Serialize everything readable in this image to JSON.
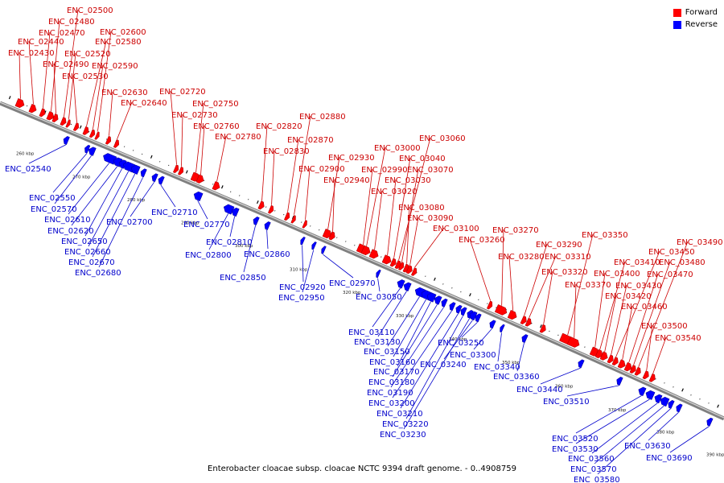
{
  "legend": {
    "forward": {
      "label": "Forward",
      "color": "#ff0000"
    },
    "reverse": {
      "label": "Reverse",
      "color": "#0000ff"
    }
  },
  "caption": "Enterobacter cloacae subsp. cloacae NCTC 9394 draft genome. - 0..4908759",
  "colors": {
    "backbone": "#808080",
    "forward_label": "#cc0000",
    "reverse_label": "#0000cc"
  },
  "axis": {
    "unit": "kbp",
    "ticks": [
      260,
      270,
      280,
      290,
      300,
      310,
      320,
      330,
      340,
      350,
      360,
      370,
      380,
      390
    ]
  },
  "forward_genes": [
    "ENC_02430",
    "ENC_02440",
    "ENC_02470",
    "ENC_02480",
    "ENC_02490",
    "ENC_02500",
    "ENC_02520",
    "ENC_02530",
    "ENC_02580",
    "ENC_02590",
    "ENC_02600",
    "ENC_02630",
    "ENC_02640",
    "ENC_02720",
    "ENC_02730",
    "ENC_02750",
    "ENC_02760",
    "ENC_02780",
    "ENC_02820",
    "ENC_02830",
    "ENC_02870",
    "ENC_02880",
    "ENC_02900",
    "ENC_02930",
    "ENC_02940",
    "ENC_02990",
    "ENC_03000",
    "ENC_03020",
    "ENC_03030",
    "ENC_03040",
    "ENC_03060",
    "ENC_03070",
    "ENC_03080",
    "ENC_03090",
    "ENC_03100",
    "ENC_03260",
    "ENC_03270",
    "ENC_03280",
    "ENC_03290",
    "ENC_03310",
    "ENC_03320",
    "ENC_03350",
    "ENC_03370",
    "ENC_03400",
    "ENC_03410",
    "ENC_03420",
    "ENC_03430",
    "ENC_03450",
    "ENC_03460",
    "ENC_03470",
    "ENC_03480",
    "ENC_03490",
    "ENC_03500",
    "ENC_03540"
  ],
  "reverse_genes": [
    "ENC_02540",
    "ENC_02550",
    "ENC_02570",
    "ENC_02610",
    "ENC_02620",
    "ENC_02650",
    "ENC_02660",
    "ENC_02670",
    "ENC_02680",
    "ENC_02700",
    "ENC_02710",
    "ENC_02770",
    "ENC_02800",
    "ENC_02810",
    "ENC_02850",
    "ENC_02860",
    "ENC_02920",
    "ENC_02950",
    "ENC_02970",
    "ENC_03050",
    "ENC_03110",
    "ENC_03130",
    "ENC_03150",
    "ENC_03160",
    "ENC_03170",
    "ENC_03180",
    "ENC_03190",
    "ENC_03200",
    "ENC_03210",
    "ENC_03220",
    "ENC_03230",
    "ENC_03240",
    "ENC_03250",
    "ENC_03300",
    "ENC_03340",
    "ENC_03360",
    "ENC_03440",
    "ENC_03510",
    "ENC_03520",
    "ENC_03530",
    "ENC_03560",
    "ENC_03570",
    "ENC_03580",
    "ENC_03630",
    "ENC_03690"
  ]
}
